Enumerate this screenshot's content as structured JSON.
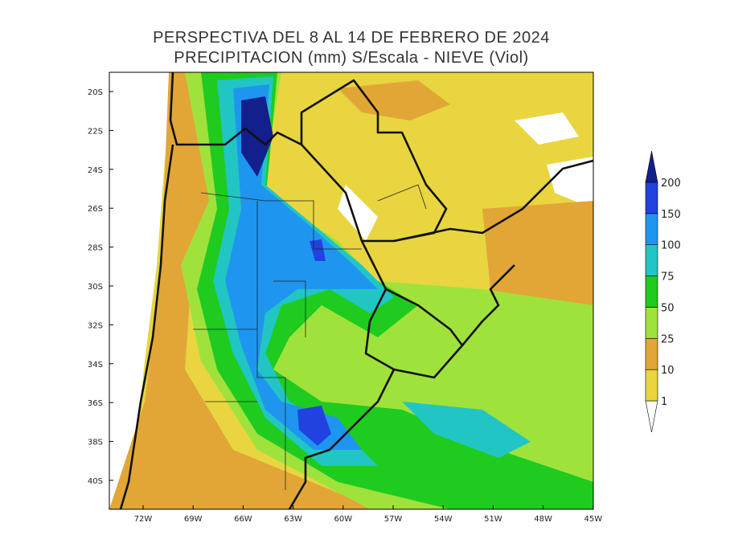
{
  "title": [
    "PERSPECTIVA DEL 8 AL 14 DE FEBRERO DE 2024",
    "PRECIPITACION (mm) S/Escala - NIEVE (Viol)"
  ],
  "map": {
    "lat_labels": [
      "20S",
      "22S",
      "24S",
      "26S",
      "28S",
      "30S",
      "32S",
      "34S",
      "36S",
      "38S",
      "40S"
    ],
    "lon_labels": [
      "72W",
      "69W",
      "66W",
      "63W",
      "60W",
      "57W",
      "54W",
      "51W",
      "48W",
      "45W"
    ]
  },
  "legend": {
    "levels": [
      1,
      10,
      25,
      50,
      75,
      100,
      150,
      200
    ],
    "colors": [
      "#ffffff",
      "#e8d540",
      "#e2a637",
      "#a0e23c",
      "#1fcb1f",
      "#21c6c4",
      "#1e96ef",
      "#2142de",
      "#121f8c"
    ]
  }
}
